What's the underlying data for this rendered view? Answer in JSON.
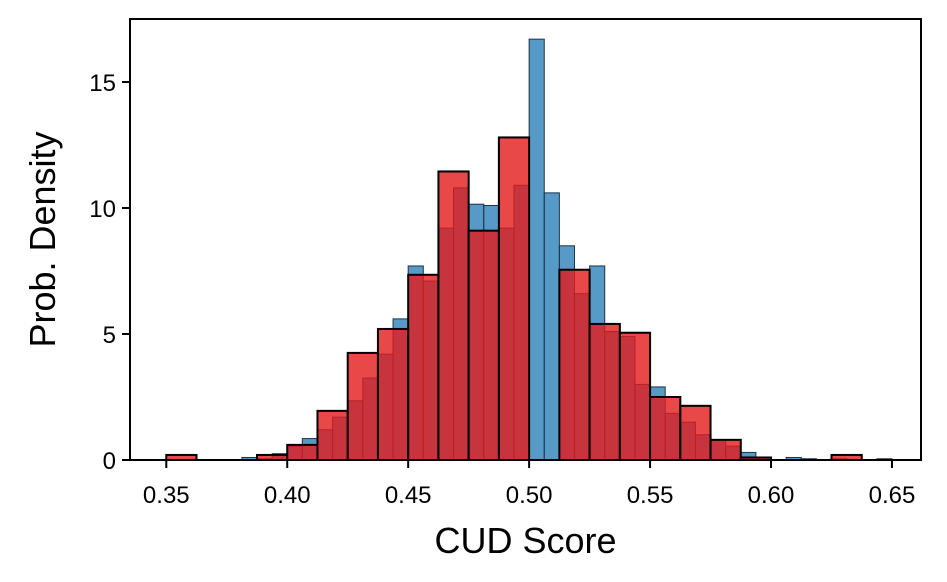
{
  "chart_data": {
    "type": "bar",
    "title": "",
    "xlabel": "CUD Score",
    "ylabel": "Prob. Density",
    "xlim": [
      0.335,
      0.662
    ],
    "ylim": [
      0,
      17.5
    ],
    "xticks": [
      "0.35",
      "0.40",
      "0.45",
      "0.50",
      "0.55",
      "0.60",
      "0.65"
    ],
    "yticks": [
      "0",
      "5",
      "10",
      "15"
    ],
    "grid": false,
    "legend": "none",
    "series": [
      {
        "color": "#1f77b4",
        "bin_width": 0.00625,
        "bins": [
          {
            "x0": 0.38125,
            "x1": 0.3875,
            "y": 0.1
          },
          {
            "x0": 0.3875,
            "x1": 0.39375,
            "y": 0.05
          },
          {
            "x0": 0.39375,
            "x1": 0.4,
            "y": 0.25
          },
          {
            "x0": 0.4,
            "x1": 0.40625,
            "y": 0.55
          },
          {
            "x0": 0.40625,
            "x1": 0.4125,
            "y": 0.85
          },
          {
            "x0": 0.4125,
            "x1": 0.41875,
            "y": 1.2
          },
          {
            "x0": 0.41875,
            "x1": 0.425,
            "y": 1.7
          },
          {
            "x0": 0.425,
            "x1": 0.43125,
            "y": 2.35
          },
          {
            "x0": 0.43125,
            "x1": 0.4375,
            "y": 3.25
          },
          {
            "x0": 0.4375,
            "x1": 0.44375,
            "y": 4.2
          },
          {
            "x0": 0.44375,
            "x1": 0.45,
            "y": 5.6
          },
          {
            "x0": 0.45,
            "x1": 0.45625,
            "y": 7.7
          },
          {
            "x0": 0.45625,
            "x1": 0.4625,
            "y": 7.1
          },
          {
            "x0": 0.4625,
            "x1": 0.46875,
            "y": 9.2
          },
          {
            "x0": 0.46875,
            "x1": 0.475,
            "y": 10.8
          },
          {
            "x0": 0.475,
            "x1": 0.48125,
            "y": 10.15
          },
          {
            "x0": 0.48125,
            "x1": 0.4875,
            "y": 10.1
          },
          {
            "x0": 0.4875,
            "x1": 0.49375,
            "y": 9.2
          },
          {
            "x0": 0.49375,
            "x1": 0.5,
            "y": 10.9
          },
          {
            "x0": 0.5,
            "x1": 0.50625,
            "y": 16.7
          },
          {
            "x0": 0.50625,
            "x1": 0.5125,
            "y": 10.6
          },
          {
            "x0": 0.5125,
            "x1": 0.51875,
            "y": 8.5
          },
          {
            "x0": 0.51875,
            "x1": 0.525,
            "y": 6.6
          },
          {
            "x0": 0.525,
            "x1": 0.53125,
            "y": 7.7
          },
          {
            "x0": 0.53125,
            "x1": 0.5375,
            "y": 5.1
          },
          {
            "x0": 0.5375,
            "x1": 0.54375,
            "y": 4.9
          },
          {
            "x0": 0.54375,
            "x1": 0.55,
            "y": 3.0
          },
          {
            "x0": 0.55,
            "x1": 0.55625,
            "y": 2.9
          },
          {
            "x0": 0.55625,
            "x1": 0.5625,
            "y": 1.85
          },
          {
            "x0": 0.5625,
            "x1": 0.56875,
            "y": 1.5
          },
          {
            "x0": 0.56875,
            "x1": 0.575,
            "y": 1.0
          },
          {
            "x0": 0.575,
            "x1": 0.58125,
            "y": 0.8
          },
          {
            "x0": 0.58125,
            "x1": 0.5875,
            "y": 0.55
          },
          {
            "x0": 0.5875,
            "x1": 0.59375,
            "y": 0.3
          },
          {
            "x0": 0.59375,
            "x1": 0.6,
            "y": 0.1
          },
          {
            "x0": 0.60625,
            "x1": 0.6125,
            "y": 0.1
          },
          {
            "x0": 0.6125,
            "x1": 0.61875,
            "y": 0.05
          },
          {
            "x0": 0.625,
            "x1": 0.63125,
            "y": 0.05
          },
          {
            "x0": 0.64375,
            "x1": 0.65,
            "y": 0.05
          }
        ]
      },
      {
        "color": "#e41a1c",
        "bin_width": 0.0125,
        "bins": [
          {
            "x0": 0.35,
            "x1": 0.3625,
            "y": 0.2
          },
          {
            "x0": 0.3625,
            "x1": 0.375,
            "y": 0.0
          },
          {
            "x0": 0.375,
            "x1": 0.3875,
            "y": 0.0
          },
          {
            "x0": 0.3875,
            "x1": 0.4,
            "y": 0.2
          },
          {
            "x0": 0.4,
            "x1": 0.4125,
            "y": 0.6
          },
          {
            "x0": 0.4125,
            "x1": 0.425,
            "y": 1.95
          },
          {
            "x0": 0.425,
            "x1": 0.4375,
            "y": 4.25
          },
          {
            "x0": 0.4375,
            "x1": 0.45,
            "y": 5.2
          },
          {
            "x0": 0.45,
            "x1": 0.4625,
            "y": 7.35
          },
          {
            "x0": 0.4625,
            "x1": 0.475,
            "y": 11.45
          },
          {
            "x0": 0.475,
            "x1": 0.4875,
            "y": 9.1
          },
          {
            "x0": 0.4875,
            "x1": 0.5,
            "y": 12.8
          },
          {
            "x0": 0.5,
            "x1": 0.5125,
            "y": 0.0
          },
          {
            "x0": 0.5125,
            "x1": 0.525,
            "y": 7.55
          },
          {
            "x0": 0.525,
            "x1": 0.5375,
            "y": 5.4
          },
          {
            "x0": 0.5375,
            "x1": 0.55,
            "y": 5.05
          },
          {
            "x0": 0.55,
            "x1": 0.5625,
            "y": 2.5
          },
          {
            "x0": 0.5625,
            "x1": 0.575,
            "y": 2.15
          },
          {
            "x0": 0.575,
            "x1": 0.5875,
            "y": 0.8
          },
          {
            "x0": 0.5875,
            "x1": 0.6,
            "y": 0.1
          },
          {
            "x0": 0.6,
            "x1": 0.6125,
            "y": 0.0
          },
          {
            "x0": 0.6125,
            "x1": 0.625,
            "y": 0.0
          },
          {
            "x0": 0.625,
            "x1": 0.6375,
            "y": 0.2
          }
        ]
      }
    ]
  }
}
